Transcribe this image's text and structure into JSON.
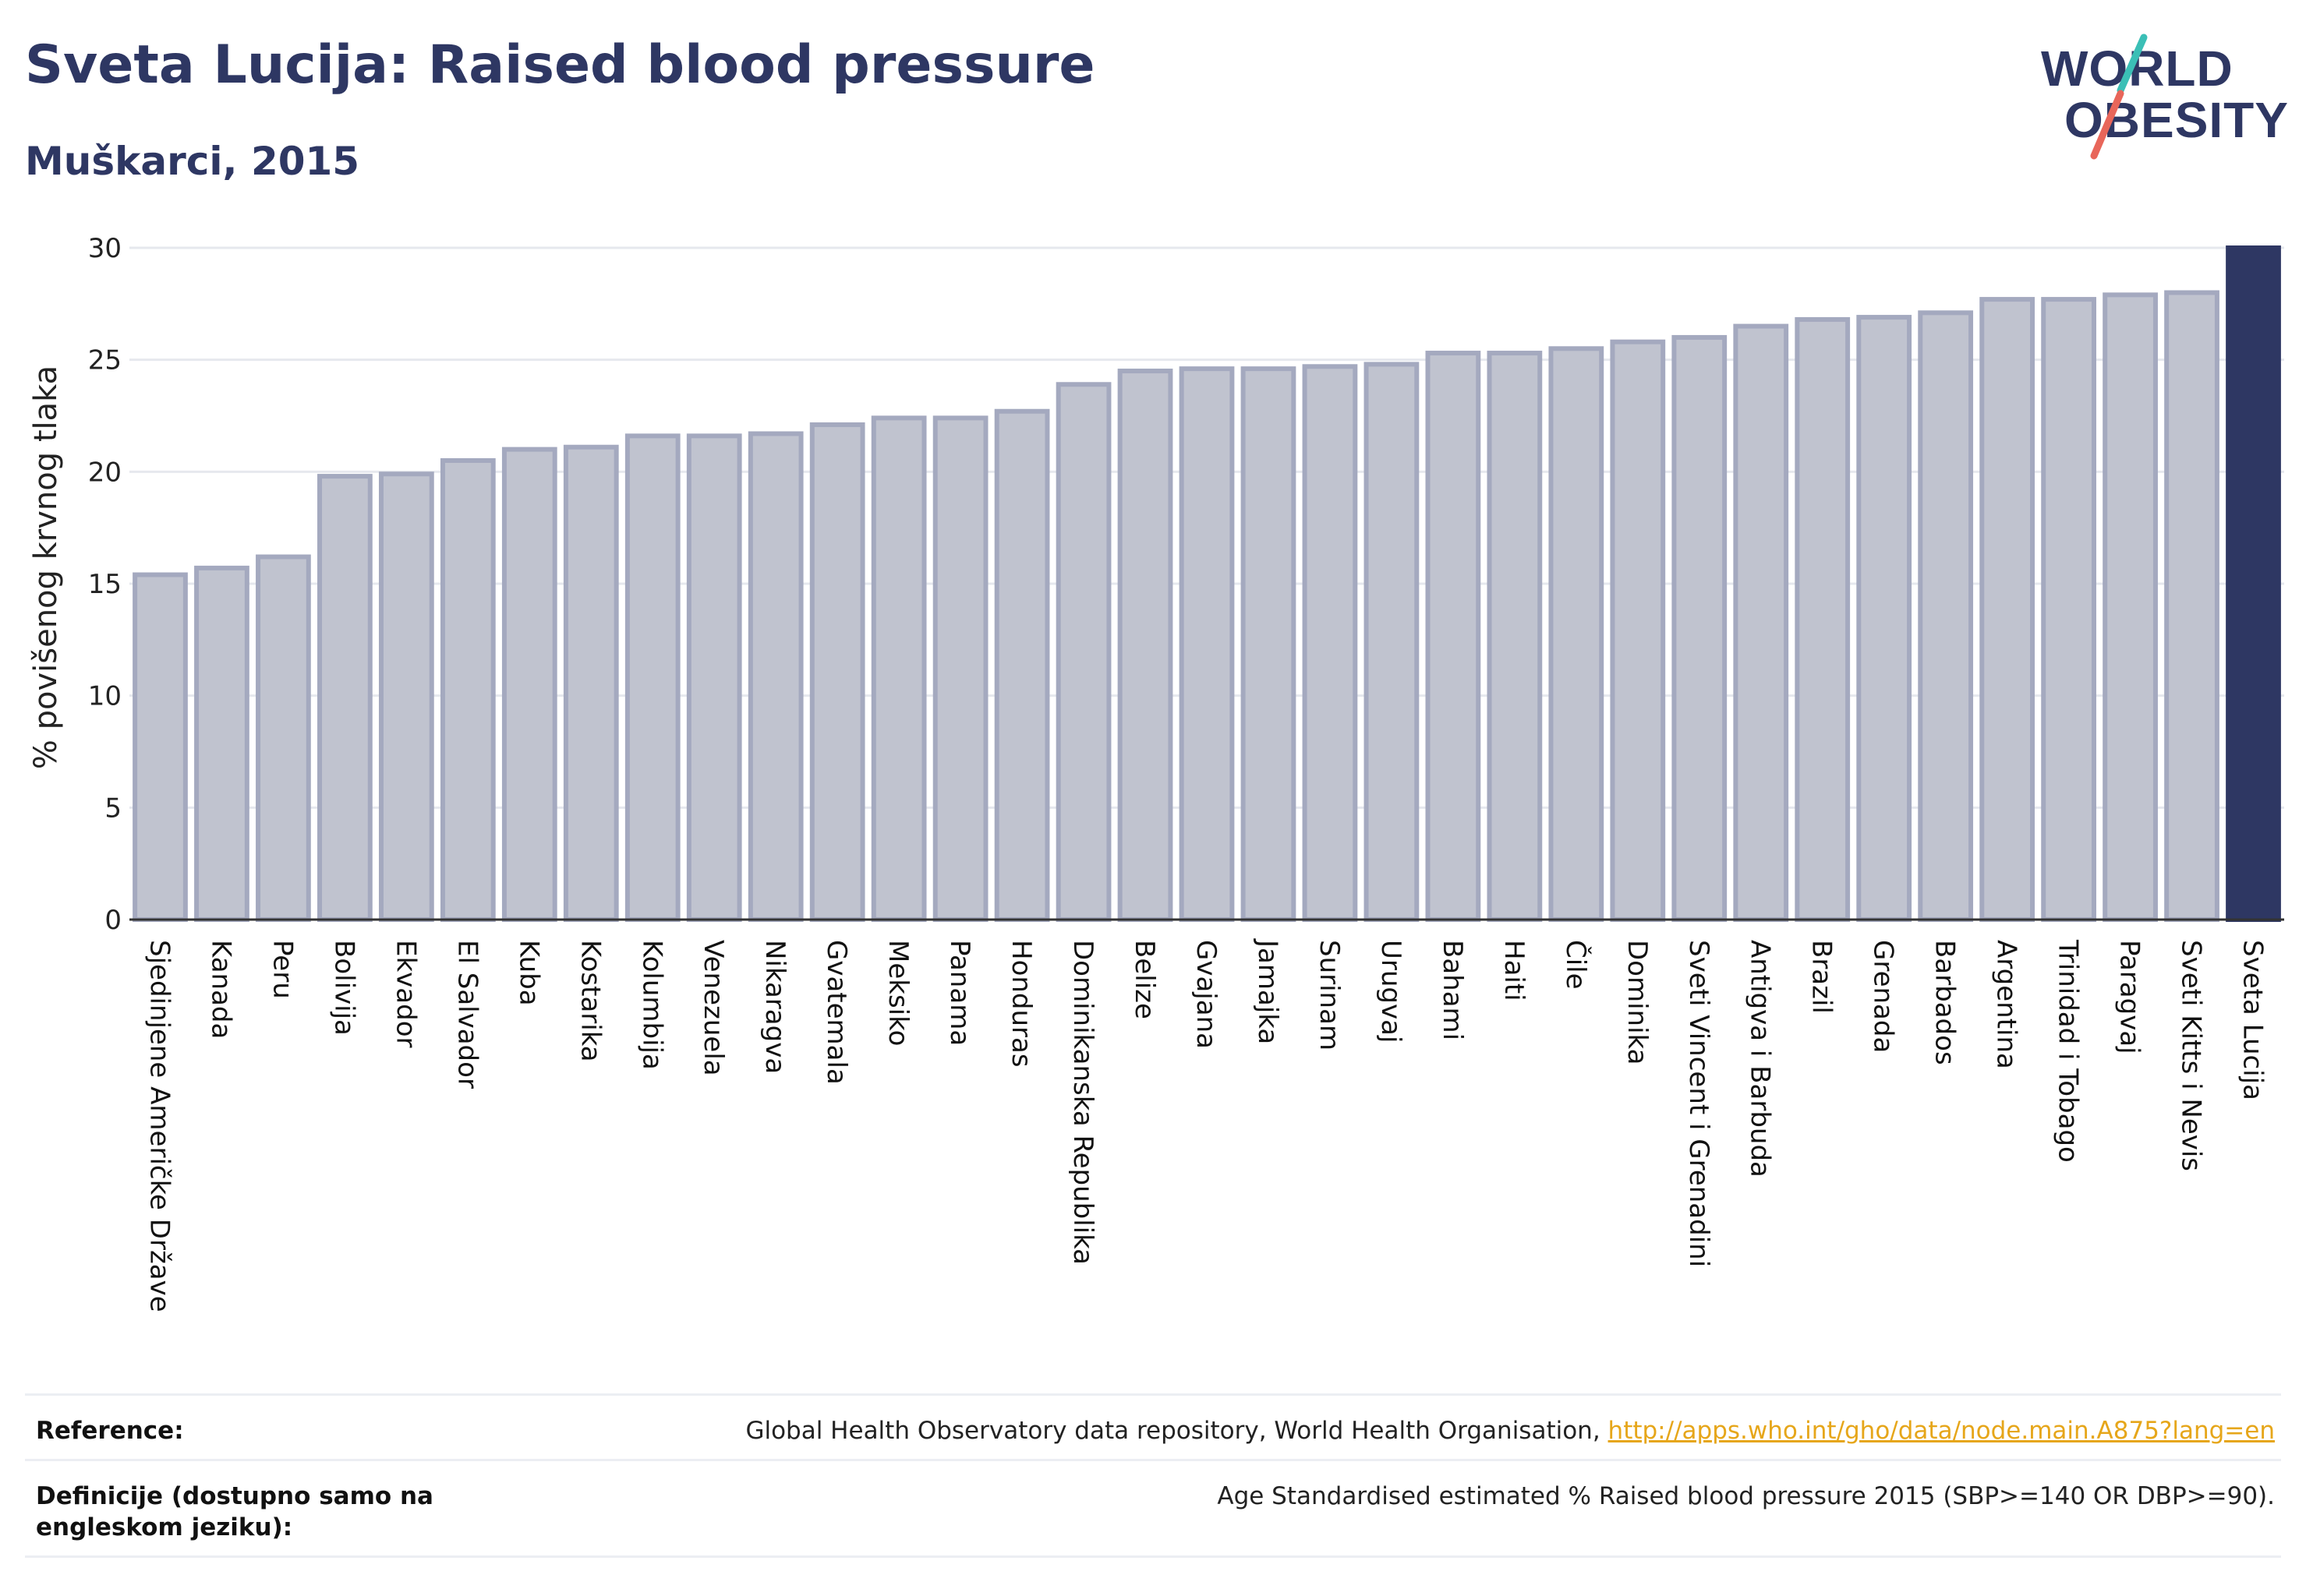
{
  "header": {
    "title": "Sveta Lucija: Raised blood pressure",
    "subtitle": "Muškarci, 2015"
  },
  "logo": {
    "line1": "WORLD",
    "line2": "OBESITY",
    "accent_teal": "#3bbfb6",
    "accent_coral": "#e8665a",
    "text_color": "#2e3763"
  },
  "chart_data": {
    "type": "bar",
    "ylabel": "% povišenog krvnog tlaka",
    "ylim": [
      0,
      30
    ],
    "yticks": [
      0,
      5,
      10,
      15,
      20,
      25,
      30
    ],
    "grid": true,
    "categories": [
      "Sjedinjene Američke Države",
      "Kanada",
      "Peru",
      "Bolivija",
      "Ekvador",
      "El Salvador",
      "Kuba",
      "Kostarika",
      "Kolumbija",
      "Venezuela",
      "Nikaragva",
      "Gvatemala",
      "Meksiko",
      "Panama",
      "Honduras",
      "Dominikanska Republika",
      "Belize",
      "Gvajana",
      "Jamajka",
      "Surinam",
      "Urugvaj",
      "Bahami",
      "Haiti",
      "Čile",
      "Dominika",
      "Sveti Vincent i Grenadini",
      "Antigva i Barbuda",
      "Brazil",
      "Grenada",
      "Barbados",
      "Argentina",
      "Trinidad i Tobago",
      "Paragvaj",
      "Sveti Kitts i Nevis",
      "Sveta Lucija"
    ],
    "values": [
      15.4,
      15.7,
      16.2,
      19.8,
      19.9,
      20.5,
      21.0,
      21.1,
      21.6,
      21.6,
      21.7,
      22.1,
      22.4,
      22.4,
      22.7,
      23.9,
      24.5,
      24.6,
      24.6,
      24.7,
      24.8,
      25.3,
      25.3,
      25.5,
      25.8,
      26.0,
      26.5,
      26.8,
      26.9,
      27.1,
      27.7,
      27.7,
      27.9,
      28.0,
      30.2
    ],
    "highlight": "Sveta Lucija",
    "colors": {
      "bar": "#c0c3cf",
      "bar_edge": "#a4a9bf",
      "highlight": "#2e3763"
    }
  },
  "footer": {
    "reference_label": "Reference:",
    "reference_text": "Global Health Observatory data repository, World Health Organisation, ",
    "reference_link": "http://apps.who.int/gho/data/node.main.A875?lang=en",
    "definition_label": "Definicije (dostupno samo na engleskom jeziku):",
    "definition_text": "Age Standardised estimated % Raised blood pressure 2015 (SBP>=140 OR DBP>=90)."
  }
}
